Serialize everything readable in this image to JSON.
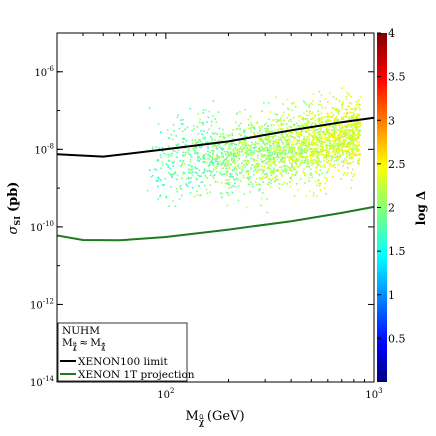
{
  "chart_data": {
    "type": "scatter",
    "xlabel": "M",
    "xlabel_sub": "χ̃",
    "xlabel_sub_sup": "0",
    "xlabel_sub_sub": "1",
    "xlabel_unit": "(GeV)",
    "ylabel": "σ",
    "ylabel_sub": "SI",
    "ylabel_unit": "(pb)",
    "x_scale": "log",
    "y_scale": "log",
    "xlim": [
      30,
      1000
    ],
    "ylim": [
      1e-14,
      1e-05
    ],
    "x_ticks": [
      {
        "value": 100,
        "base": "10",
        "exp": "2"
      },
      {
        "value": 1000,
        "base": "10",
        "exp": "3"
      }
    ],
    "y_ticks": [
      {
        "value": 1e-06,
        "base": "10",
        "exp": "-6"
      },
      {
        "value": 1e-08,
        "base": "10",
        "exp": "-8"
      },
      {
        "value": 1e-10,
        "base": "10",
        "exp": "-10"
      },
      {
        "value": 1e-12,
        "base": "10",
        "exp": "-12"
      },
      {
        "value": 1e-14,
        "base": "10",
        "exp": "-14"
      }
    ],
    "grid": false,
    "legend_position": "bottom-left",
    "legend": {
      "title": "NUHM",
      "condition_lhs": "M",
      "condition_lhs_sub": "χ̃",
      "condition_lhs_sub_sup": "0",
      "condition_lhs_sub_sub": "1",
      "condition_rel": "≈",
      "condition_rhs": "M",
      "condition_rhs_sub": "χ̃",
      "condition_rhs_sub_sup": "±",
      "condition_rhs_sub_sub": "1"
    },
    "lines": [
      {
        "name": "XENON100 limit",
        "color": "#000000",
        "points": [
          [
            30,
            7.5e-09
          ],
          [
            50,
            6.5e-09
          ],
          [
            100,
            1e-08
          ],
          [
            200,
            1.6e-08
          ],
          [
            400,
            3.1e-08
          ],
          [
            700,
            5e-08
          ],
          [
            1000,
            6.5e-08
          ]
        ]
      },
      {
        "name": "XENON 1T projection",
        "color": "#1f7a1f",
        "points": [
          [
            30,
            6e-11
          ],
          [
            40,
            4.6e-11
          ],
          [
            60,
            4.5e-11
          ],
          [
            100,
            5.5e-11
          ],
          [
            200,
            8.5e-11
          ],
          [
            400,
            1.4e-10
          ],
          [
            700,
            2.3e-10
          ],
          [
            1000,
            3.3e-10
          ]
        ]
      }
    ],
    "scatter_region": {
      "x_range": [
        80,
        860
      ],
      "color_variable": "log Δ",
      "color_range": [
        1.5,
        2.7
      ],
      "point_count": 2500,
      "note": "points spread roughly between the two limit lines, densest from 300 to 700 GeV"
    },
    "colorbar": {
      "label": "log Δ",
      "min": 0,
      "max": 4,
      "ticks": [
        "0.5",
        "1",
        "1.5",
        "2",
        "2.5",
        "3",
        "3.5",
        "4"
      ],
      "colormap": "jet"
    }
  }
}
